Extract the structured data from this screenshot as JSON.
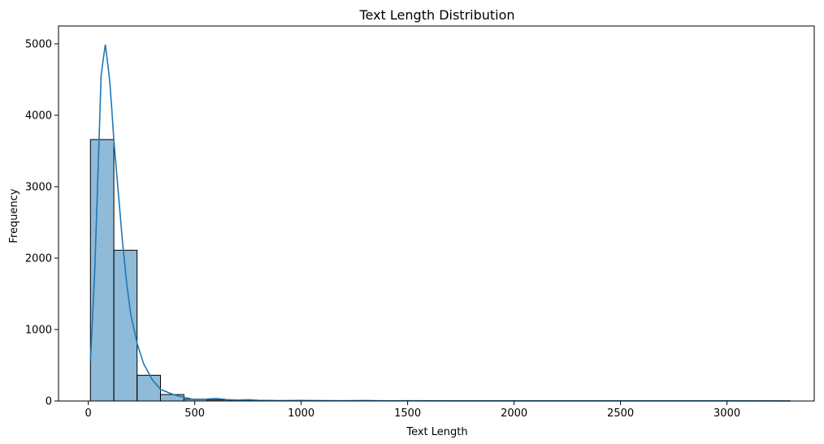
{
  "chart_data": {
    "type": "bar",
    "title": "Text Length Distribution",
    "xlabel": "Text Length",
    "ylabel": "Frequency",
    "xlim": [
      -140,
      3410
    ],
    "ylim": [
      0,
      5250
    ],
    "x_ticks": [
      0,
      500,
      1000,
      1500,
      2000,
      2500,
      3000
    ],
    "y_ticks": [
      0,
      1000,
      2000,
      3000,
      4000,
      5000
    ],
    "grid": false,
    "legend": "none",
    "bar_color": "#1f77b4",
    "bar_alpha": 0.5,
    "edge_color": "#000000",
    "kde_color": "#1f77b4",
    "bins": [
      {
        "x0": 10,
        "x1": 120,
        "count": 3660
      },
      {
        "x0": 120,
        "x1": 229,
        "count": 2110
      },
      {
        "x0": 229,
        "x1": 339,
        "count": 360
      },
      {
        "x0": 339,
        "x1": 449,
        "count": 90
      },
      {
        "x0": 449,
        "x1": 558,
        "count": 25
      },
      {
        "x0": 558,
        "x1": 668,
        "count": 15
      },
      {
        "x0": 668,
        "x1": 777,
        "count": 10
      },
      {
        "x0": 777,
        "x1": 887,
        "count": 6
      },
      {
        "x0": 887,
        "x1": 997,
        "count": 4
      },
      {
        "x0": 997,
        "x1": 1106,
        "count": 5
      },
      {
        "x0": 1106,
        "x1": 1216,
        "count": 4
      },
      {
        "x0": 1216,
        "x1": 1325,
        "count": 3
      },
      {
        "x0": 1325,
        "x1": 1435,
        "count": 3
      },
      {
        "x0": 1435,
        "x1": 1545,
        "count": 2
      },
      {
        "x0": 1545,
        "x1": 1654,
        "count": 2
      },
      {
        "x0": 1654,
        "x1": 1764,
        "count": 2
      },
      {
        "x0": 1764,
        "x1": 1873,
        "count": 1
      },
      {
        "x0": 1873,
        "x1": 1983,
        "count": 1
      },
      {
        "x0": 1983,
        "x1": 2093,
        "count": 1
      },
      {
        "x0": 2093,
        "x1": 2202,
        "count": 1
      },
      {
        "x0": 2202,
        "x1": 2312,
        "count": 1
      },
      {
        "x0": 2312,
        "x1": 2421,
        "count": 1
      },
      {
        "x0": 2421,
        "x1": 2531,
        "count": 1
      },
      {
        "x0": 2531,
        "x1": 2641,
        "count": 1
      },
      {
        "x0": 2641,
        "x1": 2750,
        "count": 1
      },
      {
        "x0": 2750,
        "x1": 2860,
        "count": 1
      },
      {
        "x0": 2860,
        "x1": 2969,
        "count": 1
      },
      {
        "x0": 2969,
        "x1": 3079,
        "count": 1
      },
      {
        "x0": 3079,
        "x1": 3189,
        "count": 1
      },
      {
        "x0": 3189,
        "x1": 3298,
        "count": 1
      }
    ],
    "kde": {
      "x": [
        10,
        30,
        50,
        60,
        70,
        80,
        90,
        100,
        110,
        120,
        140,
        160,
        180,
        200,
        230,
        260,
        300,
        340,
        400,
        450,
        500,
        550,
        600,
        650,
        700,
        750,
        800,
        900,
        1000,
        1100,
        1200,
        1300,
        1400,
        1500,
        1700,
        2000,
        2500,
        3000,
        3298
      ],
      "y": [
        560,
        1800,
        3600,
        4550,
        4780,
        4990,
        4750,
        4500,
        4100,
        3650,
        2950,
        2250,
        1650,
        1200,
        800,
        520,
        300,
        160,
        90,
        50,
        20,
        25,
        35,
        20,
        12,
        18,
        10,
        5,
        8,
        5,
        4,
        6,
        3,
        4,
        2,
        2,
        2,
        2,
        1
      ]
    }
  }
}
